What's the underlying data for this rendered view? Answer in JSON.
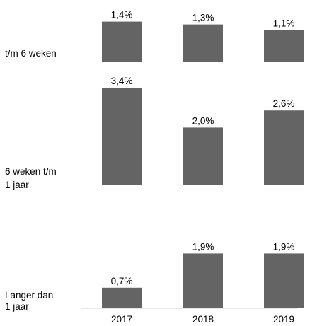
{
  "chart_data": {
    "type": "bar",
    "categories": [
      "2017",
      "2018",
      "2019"
    ],
    "bar_color": "#646464",
    "panels": [
      {
        "label_lines": [
          "t/m 6 weken"
        ],
        "values": [
          1.4,
          1.3,
          1.1
        ],
        "value_labels": [
          "1,4%",
          "1,3%",
          "1,1%"
        ]
      },
      {
        "label_lines": [
          "6 weken t/m",
          "1 jaar"
        ],
        "values": [
          3.4,
          2.0,
          2.6
        ],
        "value_labels": [
          "3,4%",
          "2,0%",
          "2,6%"
        ]
      },
      {
        "label_lines": [
          "Langer dan",
          "1 jaar"
        ],
        "values": [
          0.7,
          1.9,
          1.9
        ],
        "value_labels": [
          "0,7%",
          "1,9%",
          "1,9%"
        ]
      }
    ]
  }
}
